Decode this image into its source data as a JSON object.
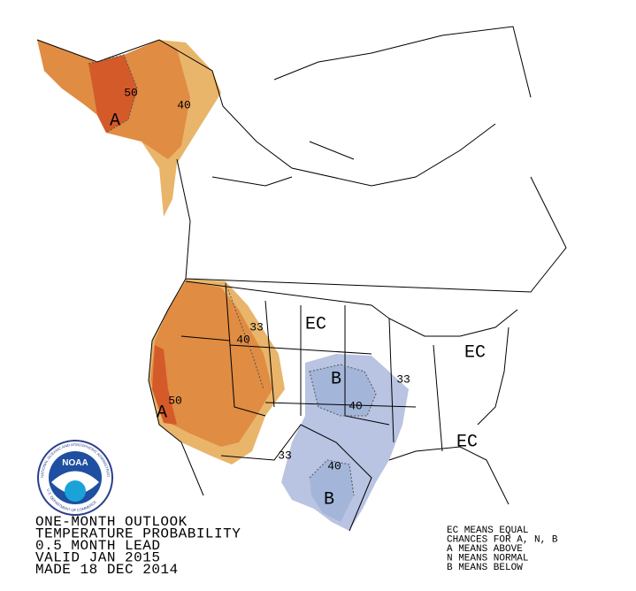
{
  "title_lines": [
    "ONE-MONTH OUTLOOK",
    "TEMPERATURE PROBABILITY",
    "0.5 MONTH LEAD",
    "VALID JAN 2015",
    "MADE 18 DEC 2014"
  ],
  "legend_lines": [
    "EC MEANS EQUAL",
    "CHANCES FOR A, N, B",
    "A MEANS ABOVE",
    "N MEANS NORMAL",
    "B MEANS BELOW"
  ],
  "logo": {
    "name": "NOAA",
    "ring_top": "NATIONAL OCEANIC AND ATMOSPHERIC ADMINISTRATION",
    "ring_bottom": "U.S. DEPARTMENT OF COMMERCE"
  },
  "map_labels": [
    "EC",
    "EC",
    "EC",
    "A",
    "A",
    "B",
    "B",
    "50",
    "40",
    "50",
    "40",
    "33",
    "33",
    "40",
    "33",
    "40"
  ]
}
